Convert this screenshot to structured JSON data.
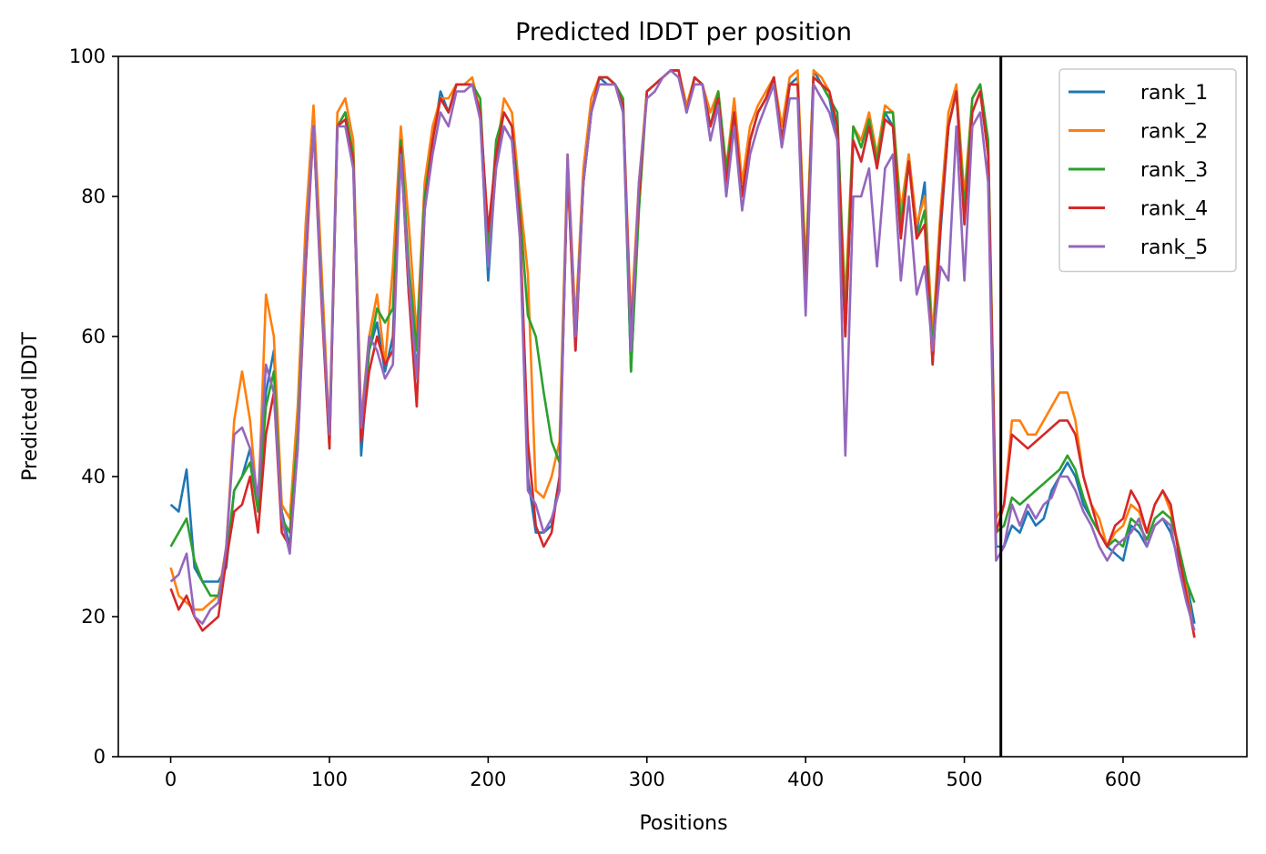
{
  "chart_data": {
    "type": "line",
    "title": "Predicted lDDT per position",
    "xlabel": "Positions",
    "ylabel": "Predicted lDDT",
    "xlim": [
      -33,
      678
    ],
    "ylim": [
      0,
      100
    ],
    "xticks": [
      0,
      100,
      200,
      300,
      400,
      500,
      600
    ],
    "yticks": [
      0,
      20,
      40,
      60,
      80,
      100
    ],
    "grid": false,
    "legend_position": "top-right",
    "vline": {
      "x": 523,
      "color": "#000000"
    },
    "series": [
      {
        "name": "rank_1",
        "color": "#1f77b4",
        "x": [
          0,
          5,
          10,
          15,
          20,
          25,
          30,
          35,
          40,
          45,
          50,
          55,
          60,
          65,
          70,
          75,
          80,
          85,
          90,
          95,
          100,
          105,
          110,
          115,
          120,
          125,
          130,
          135,
          140,
          145,
          150,
          155,
          160,
          165,
          170,
          175,
          180,
          185,
          190,
          195,
          200,
          205,
          210,
          215,
          220,
          225,
          230,
          235,
          240,
          245,
          250,
          255,
          260,
          265,
          270,
          275,
          280,
          285,
          290,
          295,
          300,
          305,
          310,
          315,
          320,
          325,
          330,
          335,
          340,
          345,
          350,
          355,
          360,
          365,
          370,
          375,
          380,
          385,
          390,
          395,
          400,
          405,
          410,
          415,
          420,
          425,
          430,
          435,
          440,
          445,
          450,
          455,
          460,
          465,
          470,
          475,
          480,
          485,
          490,
          495,
          500,
          505,
          510,
          515,
          520,
          525,
          530,
          535,
          540,
          545,
          550,
          555,
          560,
          565,
          570,
          575,
          580,
          585,
          590,
          595,
          600,
          605,
          610,
          615,
          620,
          625,
          630,
          635,
          640,
          645
        ],
        "values": [
          36,
          35,
          41,
          27,
          25,
          25,
          25,
          27,
          38,
          40,
          44,
          35,
          52,
          58,
          35,
          30,
          45,
          70,
          92,
          66,
          45,
          90,
          92,
          86,
          43,
          58,
          62,
          55,
          60,
          88,
          66,
          55,
          78,
          88,
          95,
          92,
          96,
          96,
          96,
          92,
          68,
          85,
          90,
          88,
          75,
          40,
          32,
          32,
          33,
          40,
          85,
          58,
          82,
          92,
          97,
          96,
          96,
          92,
          55,
          80,
          95,
          96,
          97,
          98,
          98,
          92,
          97,
          96,
          90,
          94,
          82,
          92,
          80,
          88,
          92,
          94,
          97,
          88,
          96,
          97,
          68,
          98,
          96,
          94,
          88,
          60,
          88,
          85,
          90,
          85,
          92,
          90,
          75,
          86,
          75,
          82,
          56,
          75,
          90,
          95,
          78,
          92,
          95,
          86,
          30,
          30,
          33,
          32,
          35,
          33,
          34,
          38,
          40,
          42,
          40,
          36,
          34,
          32,
          30,
          29,
          28,
          33,
          32,
          30,
          33,
          34,
          32,
          28,
          25,
          19
        ]
      },
      {
        "name": "rank_2",
        "color": "#ff7f0e",
        "x": [
          0,
          5,
          10,
          15,
          20,
          25,
          30,
          35,
          40,
          45,
          50,
          55,
          60,
          65,
          70,
          75,
          80,
          85,
          90,
          95,
          100,
          105,
          110,
          115,
          120,
          125,
          130,
          135,
          140,
          145,
          150,
          155,
          160,
          165,
          170,
          175,
          180,
          185,
          190,
          195,
          200,
          205,
          210,
          215,
          220,
          225,
          230,
          235,
          240,
          245,
          250,
          255,
          260,
          265,
          270,
          275,
          280,
          285,
          290,
          295,
          300,
          305,
          310,
          315,
          320,
          325,
          330,
          335,
          340,
          345,
          350,
          355,
          360,
          365,
          370,
          375,
          380,
          385,
          390,
          395,
          400,
          405,
          410,
          415,
          420,
          425,
          430,
          435,
          440,
          445,
          450,
          455,
          460,
          465,
          470,
          475,
          480,
          485,
          490,
          495,
          500,
          505,
          510,
          515,
          520,
          525,
          530,
          535,
          540,
          545,
          550,
          555,
          560,
          565,
          570,
          575,
          580,
          585,
          590,
          595,
          600,
          605,
          610,
          615,
          620,
          625,
          630,
          635,
          640,
          645
        ],
        "values": [
          27,
          23,
          22,
          21,
          21,
          22,
          23,
          30,
          48,
          55,
          48,
          35,
          66,
          60,
          36,
          34,
          50,
          76,
          93,
          70,
          46,
          92,
          94,
          88,
          48,
          60,
          66,
          56,
          70,
          90,
          76,
          60,
          82,
          90,
          94,
          94,
          96,
          96,
          97,
          92,
          75,
          86,
          94,
          92,
          80,
          69,
          38,
          37,
          40,
          45,
          86,
          62,
          84,
          94,
          97,
          97,
          96,
          93,
          62,
          82,
          95,
          96,
          97,
          98,
          98,
          93,
          97,
          96,
          92,
          95,
          84,
          94,
          82,
          90,
          93,
          95,
          97,
          90,
          97,
          98,
          70,
          98,
          97,
          95,
          90,
          65,
          90,
          88,
          92,
          86,
          93,
          92,
          78,
          86,
          76,
          80,
          60,
          78,
          92,
          96,
          80,
          94,
          96,
          88,
          34,
          36,
          48,
          48,
          46,
          46,
          48,
          50,
          52,
          52,
          48,
          40,
          36,
          34,
          30,
          32,
          33,
          36,
          35,
          32,
          36,
          38,
          35,
          30,
          24,
          17
        ]
      },
      {
        "name": "rank_3",
        "color": "#2ca02c",
        "x": [
          0,
          5,
          10,
          15,
          20,
          25,
          30,
          35,
          40,
          45,
          50,
          55,
          60,
          65,
          70,
          75,
          80,
          85,
          90,
          95,
          100,
          105,
          110,
          115,
          120,
          125,
          130,
          135,
          140,
          145,
          150,
          155,
          160,
          165,
          170,
          175,
          180,
          185,
          190,
          195,
          200,
          205,
          210,
          215,
          220,
          225,
          230,
          235,
          240,
          245,
          250,
          255,
          260,
          265,
          270,
          275,
          280,
          285,
          290,
          295,
          300,
          305,
          310,
          315,
          320,
          325,
          330,
          335,
          340,
          345,
          350,
          355,
          360,
          365,
          370,
          375,
          380,
          385,
          390,
          395,
          400,
          405,
          410,
          415,
          420,
          425,
          430,
          435,
          440,
          445,
          450,
          455,
          460,
          465,
          470,
          475,
          480,
          485,
          490,
          495,
          500,
          505,
          510,
          515,
          520,
          525,
          530,
          535,
          540,
          545,
          550,
          555,
          560,
          565,
          570,
          575,
          580,
          585,
          590,
          595,
          600,
          605,
          610,
          615,
          620,
          625,
          630,
          635,
          640,
          645
        ],
        "values": [
          30,
          32,
          34,
          28,
          25,
          23,
          23,
          28,
          38,
          40,
          42,
          35,
          50,
          55,
          34,
          32,
          46,
          72,
          90,
          67,
          44,
          90,
          92,
          86,
          46,
          58,
          64,
          62,
          64,
          88,
          70,
          58,
          80,
          88,
          94,
          92,
          96,
          96,
          96,
          94,
          72,
          88,
          92,
          90,
          78,
          63,
          60,
          52,
          45,
          42,
          84,
          60,
          82,
          92,
          97,
          97,
          96,
          94,
          55,
          78,
          95,
          96,
          97,
          98,
          98,
          92,
          97,
          96,
          90,
          95,
          84,
          92,
          80,
          88,
          92,
          94,
          97,
          88,
          96,
          96,
          68,
          97,
          96,
          94,
          92,
          62,
          90,
          87,
          91,
          85,
          92,
          92,
          76,
          85,
          74,
          78,
          58,
          76,
          90,
          95,
          78,
          94,
          96,
          88,
          32,
          33,
          37,
          36,
          37,
          38,
          39,
          40,
          41,
          43,
          41,
          37,
          34,
          32,
          30,
          31,
          30,
          34,
          33,
          31,
          34,
          35,
          34,
          30,
          25,
          22
        ]
      },
      {
        "name": "rank_4",
        "color": "#d62728",
        "x": [
          0,
          5,
          10,
          15,
          20,
          25,
          30,
          35,
          40,
          45,
          50,
          55,
          60,
          65,
          70,
          75,
          80,
          85,
          90,
          95,
          100,
          105,
          110,
          115,
          120,
          125,
          130,
          135,
          140,
          145,
          150,
          155,
          160,
          165,
          170,
          175,
          180,
          185,
          190,
          195,
          200,
          205,
          210,
          215,
          220,
          225,
          230,
          235,
          240,
          245,
          250,
          255,
          260,
          265,
          270,
          275,
          280,
          285,
          290,
          295,
          300,
          305,
          310,
          315,
          320,
          325,
          330,
          335,
          340,
          345,
          350,
          355,
          360,
          365,
          370,
          375,
          380,
          385,
          390,
          395,
          400,
          405,
          410,
          415,
          420,
          425,
          430,
          435,
          440,
          445,
          450,
          455,
          460,
          465,
          470,
          475,
          480,
          485,
          490,
          495,
          500,
          505,
          510,
          515,
          520,
          525,
          530,
          535,
          540,
          545,
          550,
          555,
          560,
          565,
          570,
          575,
          580,
          585,
          590,
          595,
          600,
          605,
          610,
          615,
          620,
          625,
          630,
          635,
          640,
          645
        ],
        "values": [
          24,
          21,
          23,
          20,
          18,
          19,
          20,
          28,
          35,
          36,
          40,
          32,
          46,
          52,
          32,
          30,
          44,
          70,
          90,
          65,
          44,
          90,
          91,
          85,
          45,
          55,
          60,
          56,
          58,
          87,
          66,
          50,
          78,
          88,
          94,
          92,
          96,
          96,
          96,
          92,
          75,
          86,
          92,
          90,
          76,
          45,
          33,
          30,
          32,
          40,
          84,
          58,
          82,
          92,
          97,
          97,
          96,
          93,
          60,
          80,
          95,
          96,
          97,
          98,
          98,
          92,
          97,
          96,
          90,
          94,
          82,
          92,
          80,
          88,
          92,
          94,
          97,
          88,
          96,
          96,
          66,
          97,
          96,
          95,
          90,
          60,
          88,
          85,
          90,
          84,
          91,
          90,
          74,
          85,
          74,
          76,
          56,
          76,
          90,
          95,
          76,
          92,
          95,
          86,
          32,
          36,
          46,
          45,
          44,
          45,
          46,
          47,
          48,
          48,
          46,
          40,
          36,
          32,
          30,
          33,
          34,
          38,
          36,
          32,
          36,
          38,
          36,
          29,
          23,
          17
        ]
      },
      {
        "name": "rank_5",
        "color": "#9467bd",
        "x": [
          0,
          5,
          10,
          15,
          20,
          25,
          30,
          35,
          40,
          45,
          50,
          55,
          60,
          65,
          70,
          75,
          80,
          85,
          90,
          95,
          100,
          105,
          110,
          115,
          120,
          125,
          130,
          135,
          140,
          145,
          150,
          155,
          160,
          165,
          170,
          175,
          180,
          185,
          190,
          195,
          200,
          205,
          210,
          215,
          220,
          225,
          230,
          235,
          240,
          245,
          250,
          255,
          260,
          265,
          270,
          275,
          280,
          285,
          290,
          295,
          300,
          305,
          310,
          315,
          320,
          325,
          330,
          335,
          340,
          345,
          350,
          355,
          360,
          365,
          370,
          375,
          380,
          385,
          390,
          395,
          400,
          405,
          410,
          415,
          420,
          425,
          430,
          435,
          440,
          445,
          450,
          455,
          460,
          465,
          470,
          475,
          480,
          485,
          490,
          495,
          500,
          505,
          510,
          515,
          520,
          525,
          530,
          535,
          540,
          545,
          550,
          555,
          560,
          565,
          570,
          575,
          580,
          585,
          590,
          595,
          600,
          605,
          610,
          615,
          620,
          625,
          630,
          635,
          640,
          645
        ],
        "values": [
          25,
          26,
          29,
          20,
          19,
          21,
          22,
          30,
          46,
          47,
          44,
          37,
          56,
          52,
          34,
          29,
          44,
          72,
          90,
          66,
          46,
          90,
          90,
          84,
          47,
          60,
          58,
          54,
          56,
          86,
          68,
          54,
          78,
          86,
          92,
          90,
          95,
          95,
          96,
          91,
          70,
          84,
          90,
          88,
          74,
          38,
          36,
          32,
          34,
          38,
          86,
          60,
          82,
          92,
          96,
          96,
          96,
          92,
          58,
          82,
          94,
          95,
          97,
          98,
          97,
          92,
          96,
          96,
          88,
          93,
          80,
          90,
          78,
          86,
          90,
          93,
          96,
          87,
          94,
          94,
          63,
          96,
          94,
          92,
          88,
          43,
          80,
          80,
          84,
          70,
          84,
          86,
          68,
          80,
          66,
          70,
          58,
          70,
          68,
          90,
          68,
          90,
          92,
          82,
          28,
          30,
          36,
          33,
          36,
          34,
          36,
          37,
          40,
          40,
          38,
          35,
          33,
          30,
          28,
          30,
          31,
          32,
          34,
          30,
          33,
          34,
          33,
          27,
          22,
          18
        ]
      }
    ]
  }
}
